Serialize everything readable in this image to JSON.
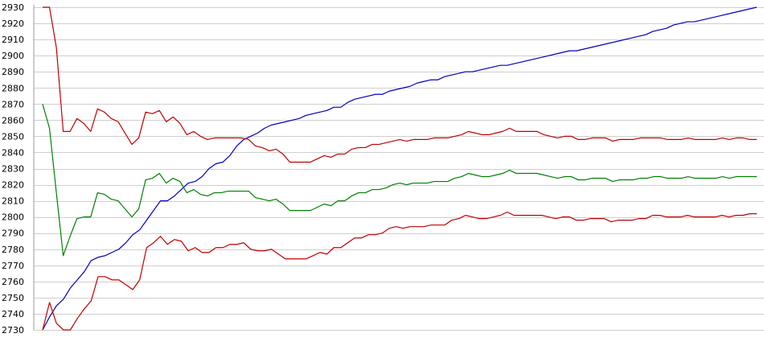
{
  "chart_data": {
    "type": "line",
    "title": "",
    "xlabel": "",
    "ylabel": "",
    "ylim": [
      2730,
      2930
    ],
    "yticks": [
      2730,
      2740,
      2750,
      2760,
      2770,
      2780,
      2790,
      2800,
      2810,
      2820,
      2830,
      2840,
      2850,
      2860,
      2870,
      2880,
      2890,
      2900,
      2910,
      2920,
      2930
    ],
    "grid": "horizontal",
    "legend": "none",
    "series": [
      {
        "color": "#0000c0",
        "values": [
          2730,
          2738,
          2745,
          2749,
          2756,
          2761,
          2766,
          2773,
          2775,
          2776,
          2778,
          2780,
          2784,
          2789,
          2792,
          2798,
          2804,
          2810,
          2810,
          2813,
          2817,
          2821,
          2822,
          2825,
          2830,
          2833,
          2834,
          2838,
          2844,
          2848,
          2850,
          2852,
          2855,
          2857,
          2858,
          2859,
          2860,
          2861,
          2863,
          2864,
          2865,
          2866,
          2868,
          2868,
          2871,
          2873,
          2874,
          2875,
          2876,
          2876,
          2878,
          2879,
          2880,
          2881,
          2883,
          2884,
          2885,
          2885,
          2887,
          2888,
          2889,
          2890,
          2890,
          2891,
          2892,
          2893,
          2894,
          2894,
          2895,
          2896,
          2897,
          2898,
          2899,
          2900,
          2901,
          2902,
          2903,
          2903,
          2904,
          2905,
          2906,
          2907,
          2908,
          2909,
          2910,
          2911,
          2912,
          2913,
          2915,
          2916,
          2917,
          2919,
          2920,
          2921,
          2921,
          2922,
          2923,
          2924,
          2925,
          2926,
          2927,
          2928,
          2929,
          2930
        ]
      },
      {
        "color": "#c00000",
        "values": [
          2930,
          2930,
          2905,
          2853,
          2853,
          2861,
          2858,
          2853,
          2867,
          2865,
          2861,
          2859,
          2852,
          2845,
          2849,
          2865,
          2864,
          2866,
          2859,
          2862,
          2858,
          2851,
          2853,
          2850,
          2848,
          2849,
          2849,
          2849,
          2849,
          2849,
          2848,
          2844,
          2843,
          2841,
          2842,
          2839,
          2834,
          2834,
          2834,
          2834,
          2836,
          2838,
          2837,
          2839,
          2839,
          2842,
          2843,
          2843,
          2845,
          2845,
          2846,
          2847,
          2848,
          2847,
          2848,
          2848,
          2848,
          2849,
          2849,
          2849,
          2850,
          2851,
          2853,
          2852,
          2851,
          2851,
          2852,
          2853,
          2855,
          2853,
          2853,
          2853,
          2853,
          2851,
          2850,
          2849,
          2850,
          2850,
          2848,
          2848,
          2849,
          2849,
          2849,
          2847,
          2848,
          2848,
          2848,
          2849,
          2849,
          2849,
          2849,
          2848,
          2848,
          2848,
          2849,
          2848,
          2848,
          2848,
          2848,
          2849,
          2848,
          2849,
          2849,
          2848,
          2848
        ]
      },
      {
        "color": "#008000",
        "values": [
          2870,
          2855,
          2815,
          2776,
          2788,
          2799,
          2800,
          2800,
          2815,
          2814,
          2811,
          2810,
          2805,
          2800,
          2805,
          2823,
          2824,
          2827,
          2821,
          2824,
          2822,
          2815,
          2817,
          2814,
          2813,
          2815,
          2815,
          2816,
          2816,
          2816,
          2816,
          2812,
          2811,
          2810,
          2811,
          2808,
          2804,
          2804,
          2804,
          2804,
          2806,
          2808,
          2807,
          2810,
          2810,
          2813,
          2815,
          2815,
          2817,
          2817,
          2818,
          2820,
          2821,
          2820,
          2821,
          2821,
          2821,
          2822,
          2822,
          2822,
          2824,
          2825,
          2827,
          2826,
          2825,
          2825,
          2826,
          2827,
          2829,
          2827,
          2827,
          2827,
          2827,
          2826,
          2825,
          2824,
          2825,
          2825,
          2823,
          2823,
          2824,
          2824,
          2824,
          2822,
          2823,
          2823,
          2823,
          2824,
          2824,
          2825,
          2825,
          2824,
          2824,
          2824,
          2825,
          2824,
          2824,
          2824,
          2824,
          2825,
          2824,
          2825,
          2825,
          2825,
          2825
        ]
      },
      {
        "color": "#c00000",
        "values": [
          2730,
          2747,
          2734,
          2730,
          2730,
          2737,
          2743,
          2748,
          2763,
          2763,
          2761,
          2761,
          2758,
          2755,
          2761,
          2781,
          2784,
          2788,
          2783,
          2786,
          2785,
          2779,
          2781,
          2778,
          2778,
          2781,
          2781,
          2783,
          2783,
          2784,
          2780,
          2779,
          2779,
          2780,
          2777,
          2774,
          2774,
          2774,
          2774,
          2776,
          2778,
          2777,
          2781,
          2781,
          2784,
          2787,
          2787,
          2789,
          2789,
          2790,
          2793,
          2794,
          2793,
          2794,
          2794,
          2794,
          2795,
          2795,
          2795,
          2798,
          2799,
          2801,
          2800,
          2799,
          2799,
          2800,
          2801,
          2803,
          2801,
          2801,
          2801,
          2801,
          2801,
          2800,
          2799,
          2800,
          2800,
          2798,
          2798,
          2799,
          2799,
          2799,
          2797,
          2798,
          2798,
          2798,
          2799,
          2799,
          2801,
          2801,
          2800,
          2800,
          2800,
          2801,
          2800,
          2800,
          2800,
          2800,
          2801,
          2800,
          2801,
          2801,
          2802,
          2802
        ]
      }
    ]
  }
}
